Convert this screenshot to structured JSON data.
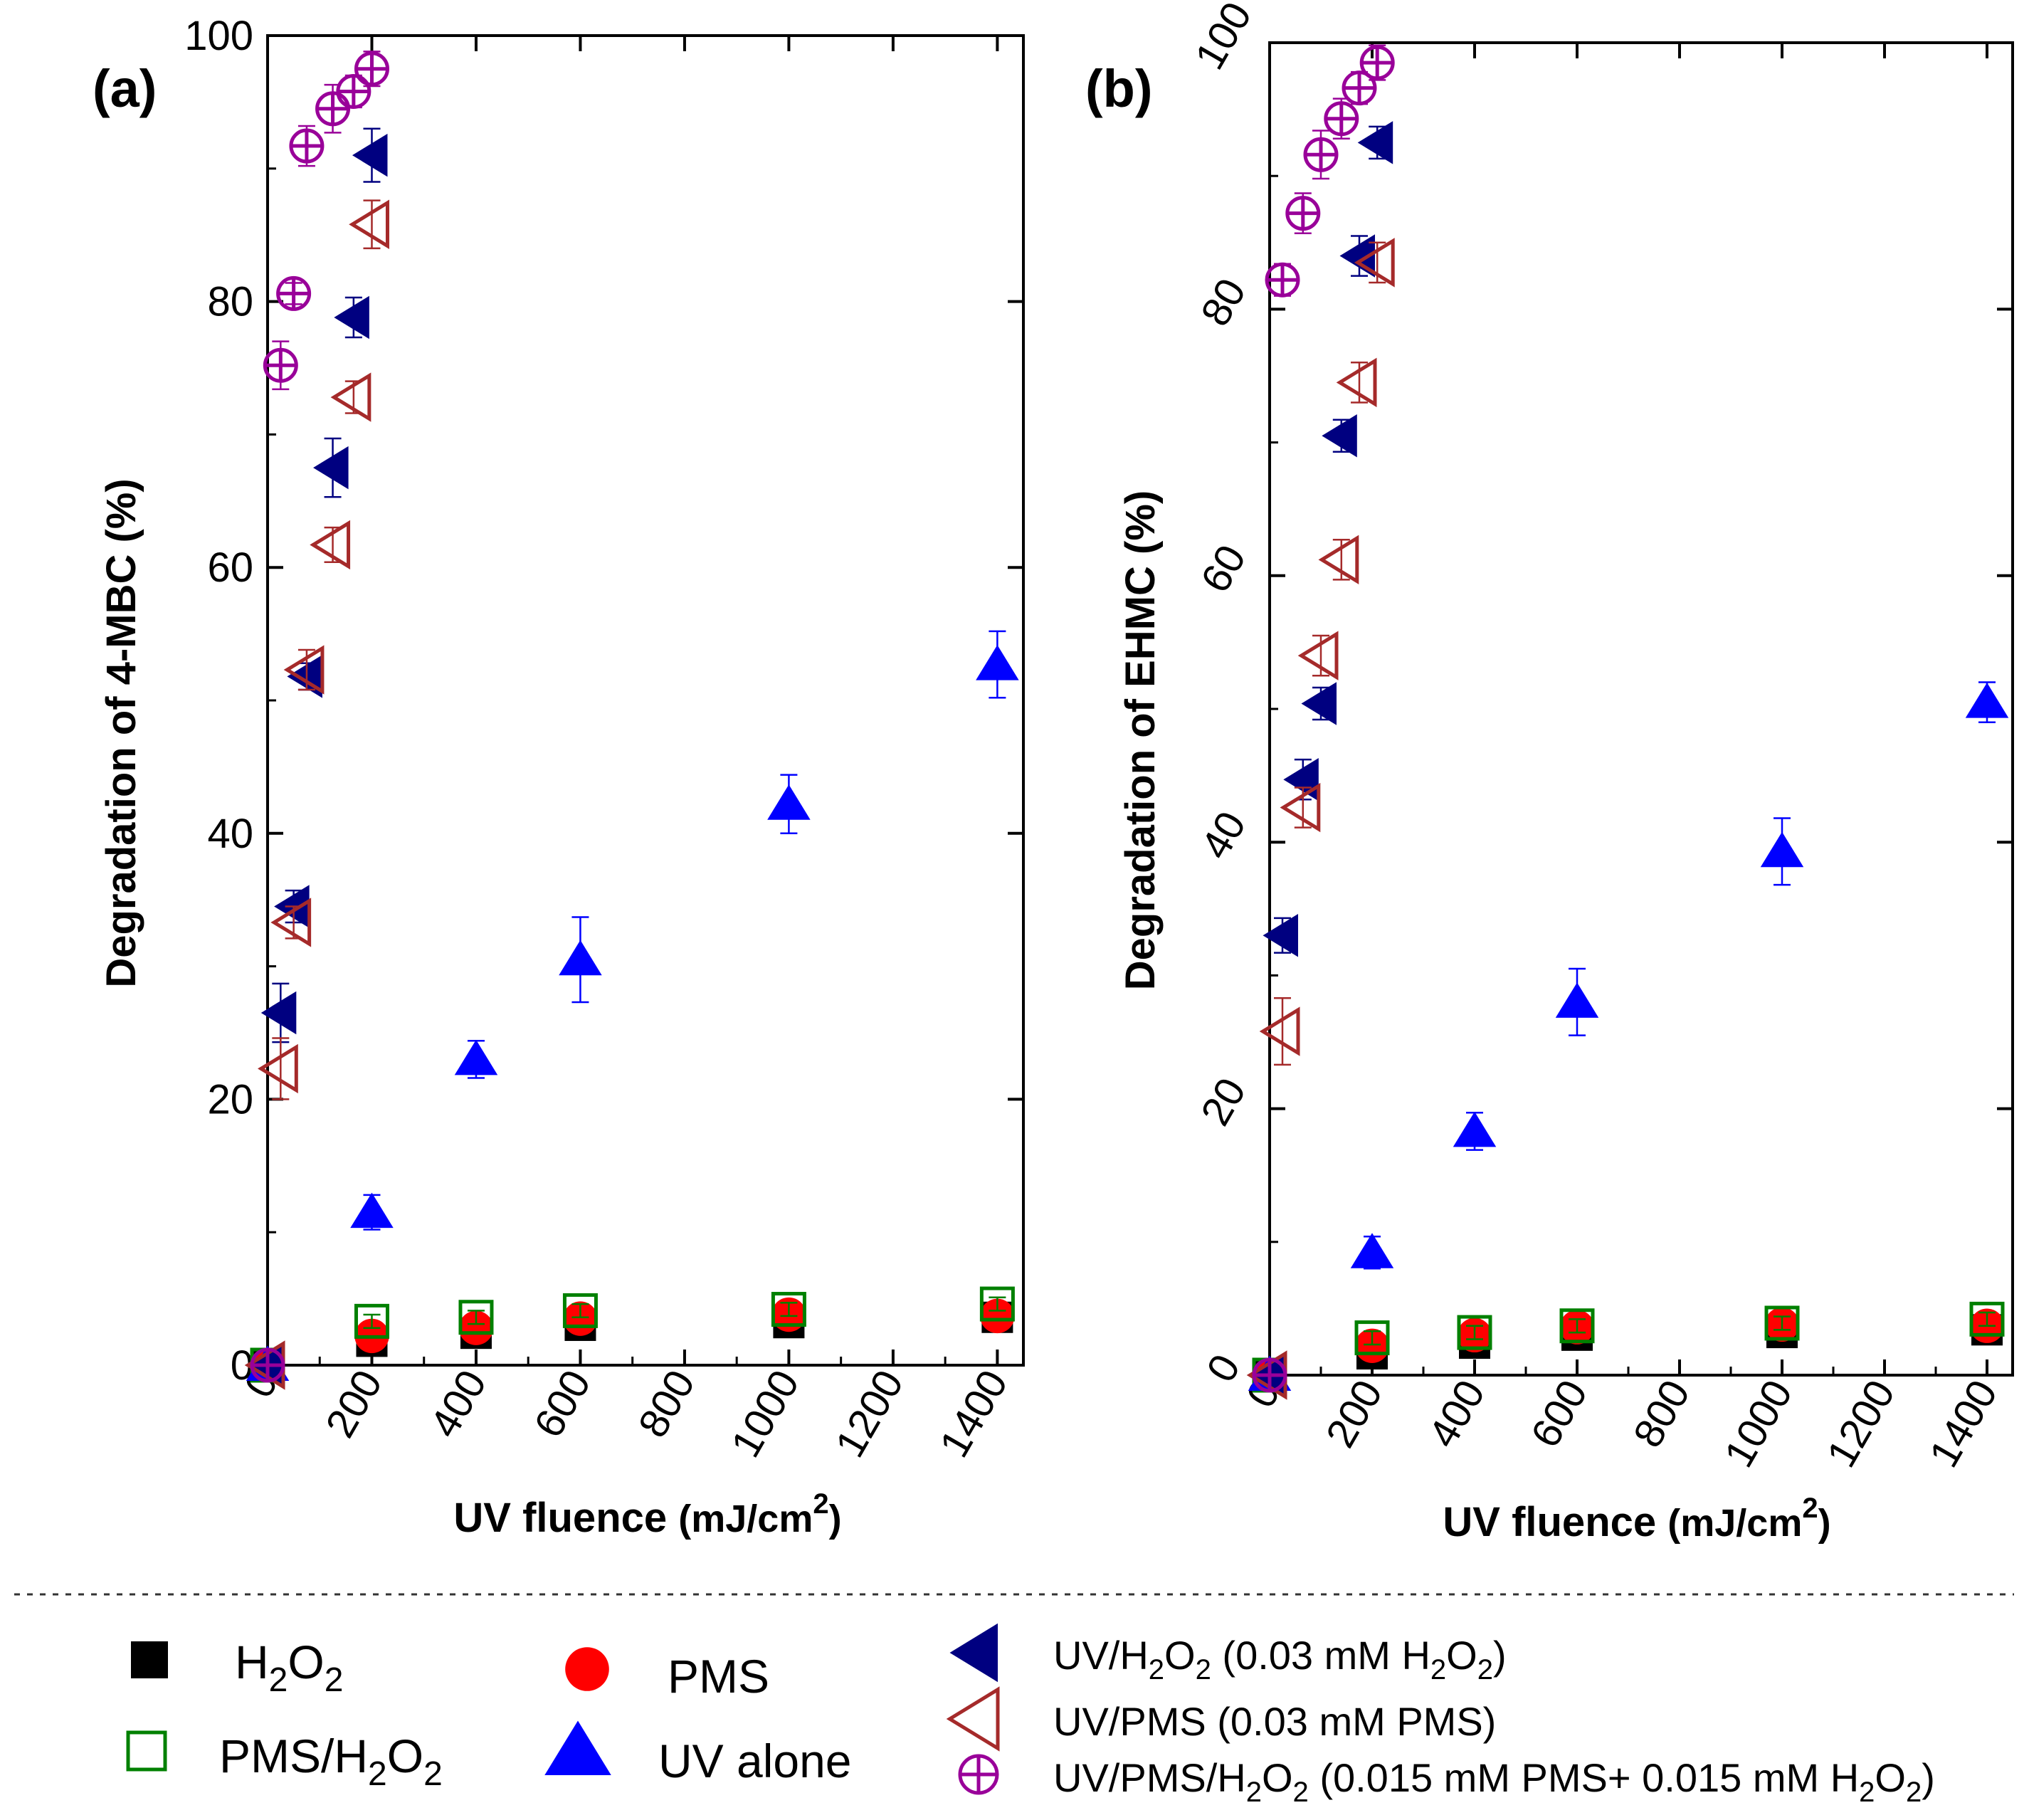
{
  "colors": {
    "h2o2": "#000000",
    "pms": "#ff0000",
    "pms_h2o2": "#008000",
    "uv_alone": "#0000ff",
    "uv_h2o2": "#000080",
    "uv_pms": "#a52a2a",
    "uv_pms_h2o2": "#990099"
  },
  "legend": {
    "h2o2": {
      "pre": "H",
      "sub1": "2",
      "mid": "O",
      "sub2": "2",
      "post": ""
    },
    "pms": {
      "text": "PMS"
    },
    "pms_h2o2": {
      "pre": "PMS/H",
      "sub1": "2",
      "mid": "O",
      "sub2": "2",
      "post": ""
    },
    "uv_alone": {
      "text": "UV alone"
    },
    "uv_h2o2": {
      "a": "UV/H",
      "s1": "2",
      "b": "O",
      "s2": "2",
      "c": " (0.03 mM H",
      "s3": "2",
      "d": "O",
      "s4": "2",
      "e": ")"
    },
    "uv_pms": {
      "text": "UV/PMS (0.03 mM PMS)"
    },
    "uv_pms_h2o2": {
      "a": "UV/PMS/H",
      "s1": "2",
      "b": "O",
      "s2": "2",
      "c": " (0.015 mM PMS+ 0.015 mM H",
      "s3": "2",
      "d": "O",
      "s4": "2",
      "e": ")"
    }
  },
  "chart_data": [
    {
      "type": "scatter",
      "panel_label": "(a)",
      "title": "",
      "xlabel_main": "UV fluence",
      "xlabel_unit": "(mJ/cm",
      "xlabel_sup": "2",
      "xlabel_close": ")",
      "ylabel": "Degradation of 4-MBC (%)",
      "xlim": [
        0,
        1450
      ],
      "ylim": [
        0,
        100
      ],
      "xticks": [
        0,
        200,
        400,
        600,
        800,
        1000,
        1200,
        1400
      ],
      "yticks": [
        0,
        20,
        40,
        60,
        80,
        100
      ],
      "series": [
        {
          "key": "h2o2",
          "marker": "filled-square",
          "points": [
            [
              0,
              0
            ],
            [
              200,
              1.8
            ],
            [
              400,
              2.4
            ],
            [
              600,
              3.0
            ],
            [
              1000,
              3.2
            ],
            [
              1400,
              3.6
            ]
          ],
          "err": [
            0,
            0.3,
            0.3,
            0.3,
            0.3,
            0.3
          ]
        },
        {
          "key": "pms",
          "marker": "filled-circle",
          "points": [
            [
              0,
              0
            ],
            [
              200,
              2.2
            ],
            [
              400,
              2.8
            ],
            [
              600,
              3.5
            ],
            [
              1000,
              3.8
            ],
            [
              1400,
              3.7
            ]
          ],
          "err": [
            0,
            0.4,
            0.4,
            0.4,
            0.4,
            0.4
          ]
        },
        {
          "key": "pms_h2o2",
          "marker": "open-square",
          "points": [
            [
              0,
              0
            ],
            [
              200,
              3.3
            ],
            [
              400,
              3.6
            ],
            [
              600,
              4.1
            ],
            [
              1000,
              4.2
            ],
            [
              1400,
              4.6
            ]
          ],
          "err": [
            0,
            0.5,
            0.5,
            0.5,
            0.5,
            0.5
          ]
        },
        {
          "key": "uv_alone",
          "marker": "filled-triangle-up",
          "points": [
            [
              0,
              0
            ],
            [
              200,
              11.5
            ],
            [
              400,
              23.0
            ],
            [
              600,
              30.5
            ],
            [
              1000,
              42.2
            ],
            [
              1400,
              52.7
            ]
          ],
          "err": [
            0,
            1.3,
            1.4,
            3.2,
            2.2,
            2.5
          ]
        },
        {
          "key": "uv_h2o2",
          "marker": "filled-triangle-left",
          "points": [
            [
              0,
              0
            ],
            [
              25,
              26.5
            ],
            [
              50,
              34.5
            ],
            [
              75,
              51.8
            ],
            [
              125,
              67.5
            ],
            [
              165,
              78.8
            ],
            [
              200,
              91.0
            ]
          ],
          "err": [
            0,
            2.2,
            1.2,
            1.0,
            2.2,
            1.5,
            2.0
          ]
        },
        {
          "key": "uv_pms",
          "marker": "open-triangle-left",
          "points": [
            [
              0,
              0
            ],
            [
              25,
              22.3
            ],
            [
              50,
              33.3
            ],
            [
              75,
              52.3
            ],
            [
              125,
              61.7
            ],
            [
              165,
              72.8
            ],
            [
              200,
              85.8
            ]
          ],
          "err": [
            0,
            2.3,
            1.2,
            1.5,
            1.3,
            1.2,
            1.8
          ]
        },
        {
          "key": "uv_pms_h2o2",
          "marker": "circle-plus",
          "points": [
            [
              0,
              0
            ],
            [
              25,
              75.2
            ],
            [
              50,
              80.6
            ],
            [
              75,
              91.7
            ],
            [
              125,
              94.5
            ],
            [
              165,
              95.8
            ],
            [
              200,
              97.5
            ]
          ],
          "err": [
            0,
            1.8,
            0.8,
            1.5,
            1.8,
            1.2,
            1.3
          ]
        }
      ]
    },
    {
      "type": "scatter",
      "panel_label": "(b)",
      "title": "",
      "xlabel_main": "UV fluence",
      "xlabel_unit": "(mJ/cm",
      "xlabel_sup": "2",
      "xlabel_close": ")",
      "ylabel": "Degradation of EHMC (%)",
      "xlim": [
        0,
        1450
      ],
      "ylim": [
        0,
        100
      ],
      "xticks": [
        0,
        200,
        400,
        600,
        800,
        1000,
        1200,
        1400
      ],
      "yticks": [
        0,
        20,
        40,
        60,
        80,
        100
      ],
      "series": [
        {
          "key": "h2o2",
          "marker": "filled-square",
          "points": [
            [
              0,
              0
            ],
            [
              200,
              1.6
            ],
            [
              400,
              2.4
            ],
            [
              600,
              3.0
            ],
            [
              1000,
              3.2
            ],
            [
              1400,
              3.4
            ]
          ],
          "err": [
            0,
            0.3,
            0.3,
            0.3,
            0.3,
            0.3
          ]
        },
        {
          "key": "pms",
          "marker": "filled-circle",
          "points": [
            [
              0,
              0
            ],
            [
              200,
              2.2
            ],
            [
              400,
              3.0
            ],
            [
              600,
              3.6
            ],
            [
              1000,
              3.8
            ],
            [
              1400,
              3.7
            ]
          ],
          "err": [
            0,
            0.4,
            0.4,
            0.4,
            0.4,
            0.4
          ]
        },
        {
          "key": "pms_h2o2",
          "marker": "open-square",
          "points": [
            [
              0,
              0
            ],
            [
              200,
              2.8
            ],
            [
              400,
              3.2
            ],
            [
              600,
              3.7
            ],
            [
              1000,
              3.9
            ],
            [
              1400,
              4.2
            ]
          ],
          "err": [
            0,
            0.5,
            0.5,
            0.5,
            0.5,
            0.5
          ]
        },
        {
          "key": "uv_alone",
          "marker": "filled-triangle-up",
          "points": [
            [
              0,
              0
            ],
            [
              200,
              9.2
            ],
            [
              400,
              18.3
            ],
            [
              600,
              28.0
            ],
            [
              1000,
              39.3
            ],
            [
              1400,
              50.5
            ]
          ],
          "err": [
            0,
            1.2,
            1.4,
            2.5,
            2.5,
            1.5
          ]
        },
        {
          "key": "uv_h2o2",
          "marker": "filled-triangle-left",
          "points": [
            [
              0,
              0
            ],
            [
              25,
              33.0
            ],
            [
              65,
              44.7
            ],
            [
              100,
              50.4
            ],
            [
              140,
              70.5
            ],
            [
              175,
              84.0
            ],
            [
              210,
              92.5
            ]
          ],
          "err": [
            0,
            1.3,
            1.5,
            1.2,
            1.2,
            1.5,
            1.2
          ]
        },
        {
          "key": "uv_pms",
          "marker": "open-triangle-left",
          "points": [
            [
              0,
              0
            ],
            [
              25,
              25.8
            ],
            [
              65,
              42.6
            ],
            [
              100,
              54.0
            ],
            [
              140,
              61.2
            ],
            [
              175,
              74.5
            ],
            [
              210,
              83.5
            ]
          ],
          "err": [
            0,
            2.5,
            1.5,
            1.5,
            1.5,
            1.5,
            1.5
          ]
        },
        {
          "key": "uv_pms_h2o2",
          "marker": "circle-plus",
          "points": [
            [
              0,
              0
            ],
            [
              25,
              82.2
            ],
            [
              65,
              87.2
            ],
            [
              100,
              91.6
            ],
            [
              140,
              94.3
            ],
            [
              175,
              96.6
            ],
            [
              210,
              98.5
            ]
          ],
          "err": [
            0,
            1.2,
            1.5,
            1.8,
            1.5,
            1.2,
            1.3
          ]
        }
      ]
    }
  ]
}
